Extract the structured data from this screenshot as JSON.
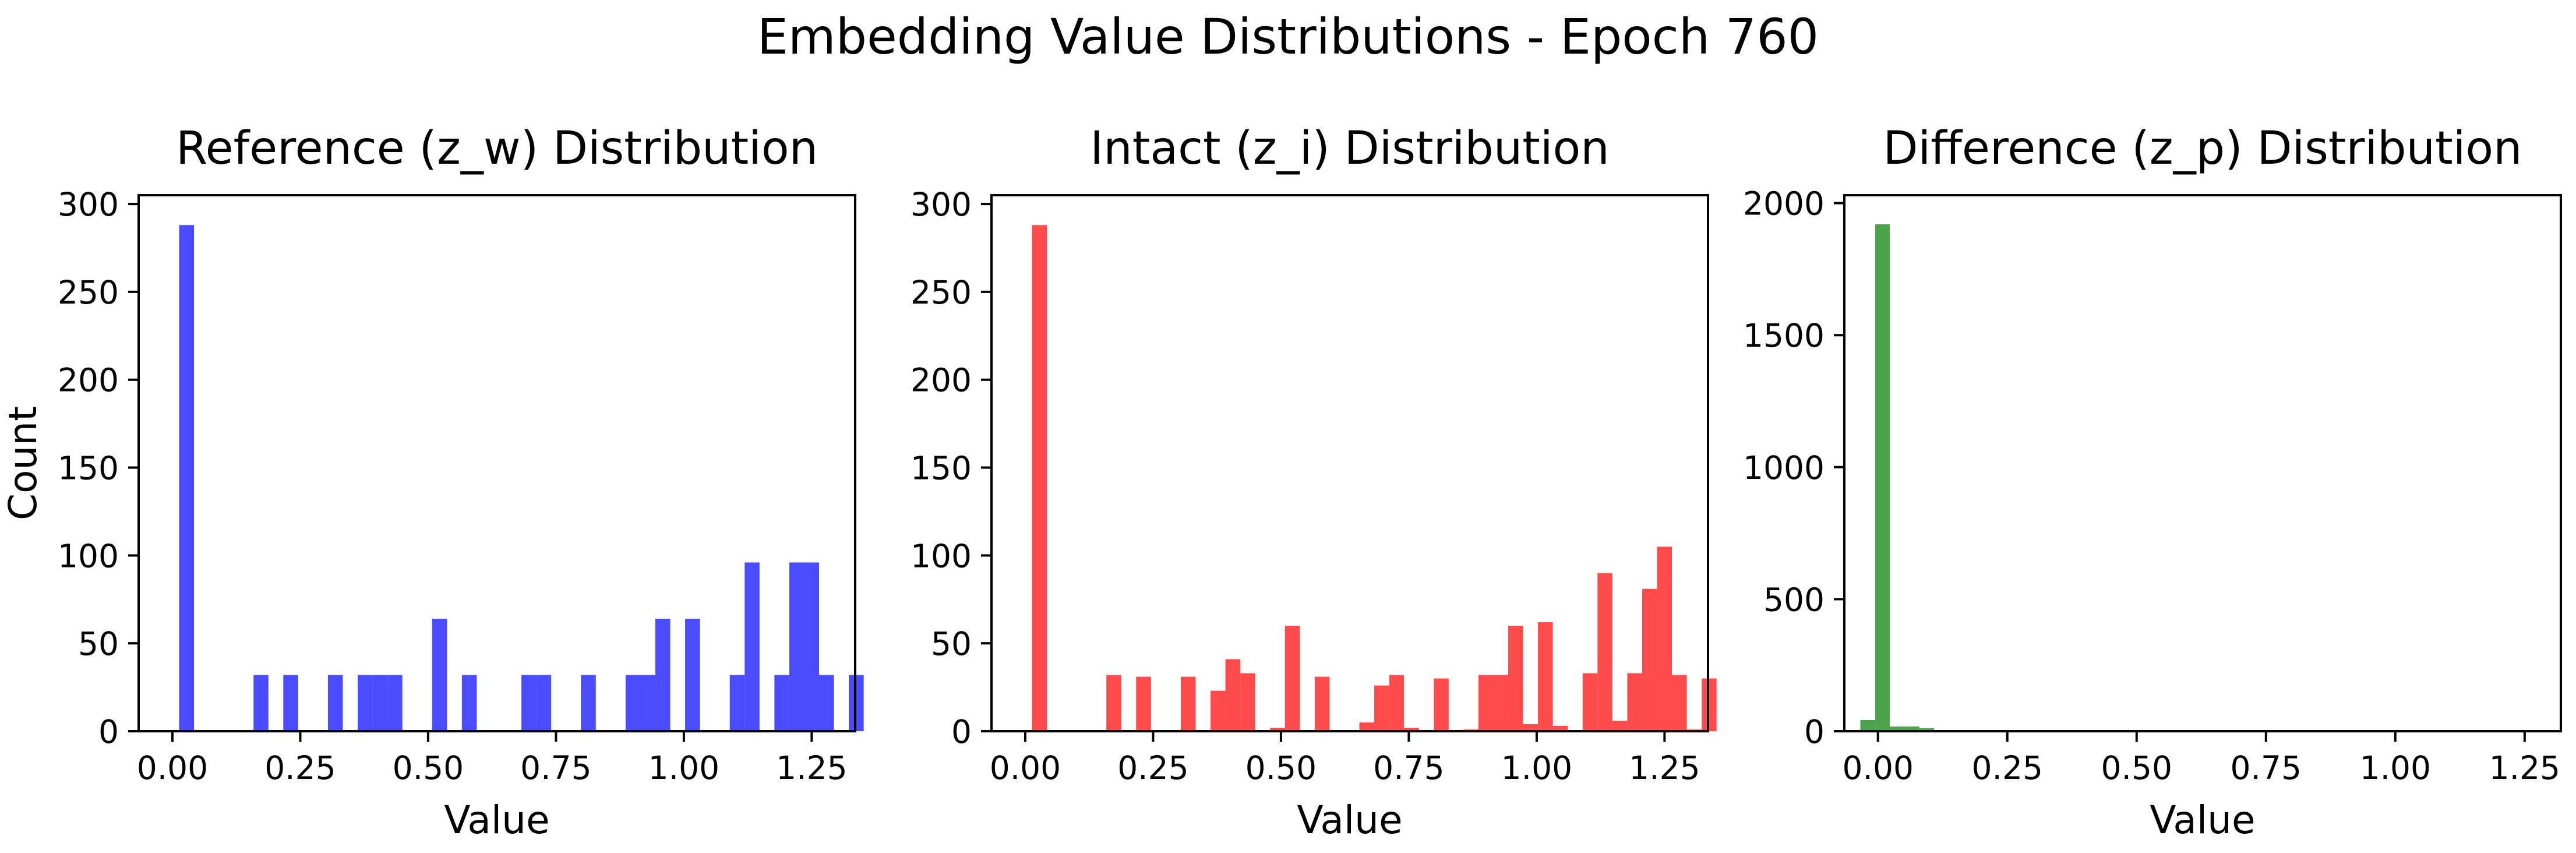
{
  "title": "Embedding Value Distributions - Epoch 760",
  "chart_data": [
    {
      "type": "bar",
      "title": "Reference (z_w) Distribution",
      "xlabel": "Value",
      "ylabel": "Count",
      "color": "#4b4bff",
      "xlim": [
        -0.066,
        1.335
      ],
      "ylim": [
        0,
        305
      ],
      "xticks": [
        "0.00",
        "0.25",
        "0.50",
        "0.75",
        "1.00",
        "1.25"
      ],
      "xtick_values": [
        0,
        0.25,
        0.5,
        0.75,
        1.0,
        1.25
      ],
      "yticks": [
        "0",
        "50",
        "100",
        "150",
        "200",
        "250",
        "300"
      ],
      "ytick_values": [
        0,
        50,
        100,
        150,
        200,
        250,
        300
      ],
      "bin_edges_start": -0.016,
      "bin_width": 0.0291,
      "values": [
        0,
        288,
        0,
        0,
        0,
        0,
        32,
        0,
        32,
        0,
        0,
        32,
        0,
        32,
        32,
        32,
        0,
        0,
        64,
        0,
        32,
        0,
        0,
        0,
        32,
        32,
        0,
        0,
        32,
        0,
        0,
        32,
        32,
        64,
        0,
        64,
        0,
        0,
        32,
        96,
        0,
        32,
        96,
        96,
        32,
        0,
        32
      ]
    },
    {
      "type": "bar",
      "title": "Intact (z_i) Distribution",
      "xlabel": "Value",
      "ylabel": "",
      "color": "#ff4b4b",
      "xlim": [
        -0.066,
        1.335
      ],
      "ylim": [
        0,
        305
      ],
      "xticks": [
        "0.00",
        "0.25",
        "0.50",
        "0.75",
        "1.00",
        "1.25"
      ],
      "xtick_values": [
        0,
        0.25,
        0.5,
        0.75,
        1.0,
        1.25
      ],
      "yticks": [
        "0",
        "50",
        "100",
        "150",
        "200",
        "250",
        "300"
      ],
      "ytick_values": [
        0,
        50,
        100,
        150,
        200,
        250,
        300
      ],
      "bin_edges_start": -0.016,
      "bin_width": 0.0291,
      "values": [
        0,
        288,
        0,
        0,
        0,
        0,
        32,
        0,
        31,
        0,
        0,
        31,
        0,
        23,
        41,
        33,
        0,
        2,
        60,
        0,
        31,
        0,
        0,
        5,
        26,
        32,
        2,
        0,
        30,
        0,
        1,
        32,
        32,
        60,
        4,
        62,
        3,
        0,
        33,
        90,
        6,
        33,
        81,
        105,
        32,
        1,
        30
      ]
    },
    {
      "type": "bar",
      "title": "Difference (z_p) Distribution",
      "xlabel": "Value",
      "ylabel": "",
      "color": "#4ba34b",
      "xlim": [
        -0.065,
        1.32
      ],
      "ylim": [
        0,
        2030
      ],
      "xticks": [
        "0.00",
        "0.25",
        "0.50",
        "0.75",
        "1.00",
        "1.25"
      ],
      "xtick_values": [
        0,
        0.25,
        0.5,
        0.75,
        1.0,
        1.25
      ],
      "yticks": [
        "0",
        "500",
        "1000",
        "1500",
        "2000"
      ],
      "ytick_values": [
        0,
        500,
        1000,
        1500,
        2000
      ],
      "bin_edges_start": -0.034,
      "bin_width": 0.0285,
      "values": [
        42,
        1920,
        18,
        18,
        12,
        4,
        2,
        1,
        1,
        1,
        0,
        1,
        1,
        1,
        0,
        1,
        1,
        1,
        0,
        1,
        1,
        1,
        0,
        1,
        1,
        1,
        0,
        1,
        1,
        1,
        0,
        1,
        1,
        1,
        0,
        1,
        1,
        1,
        0,
        1,
        1,
        1,
        0,
        1,
        1,
        1,
        1
      ]
    }
  ]
}
